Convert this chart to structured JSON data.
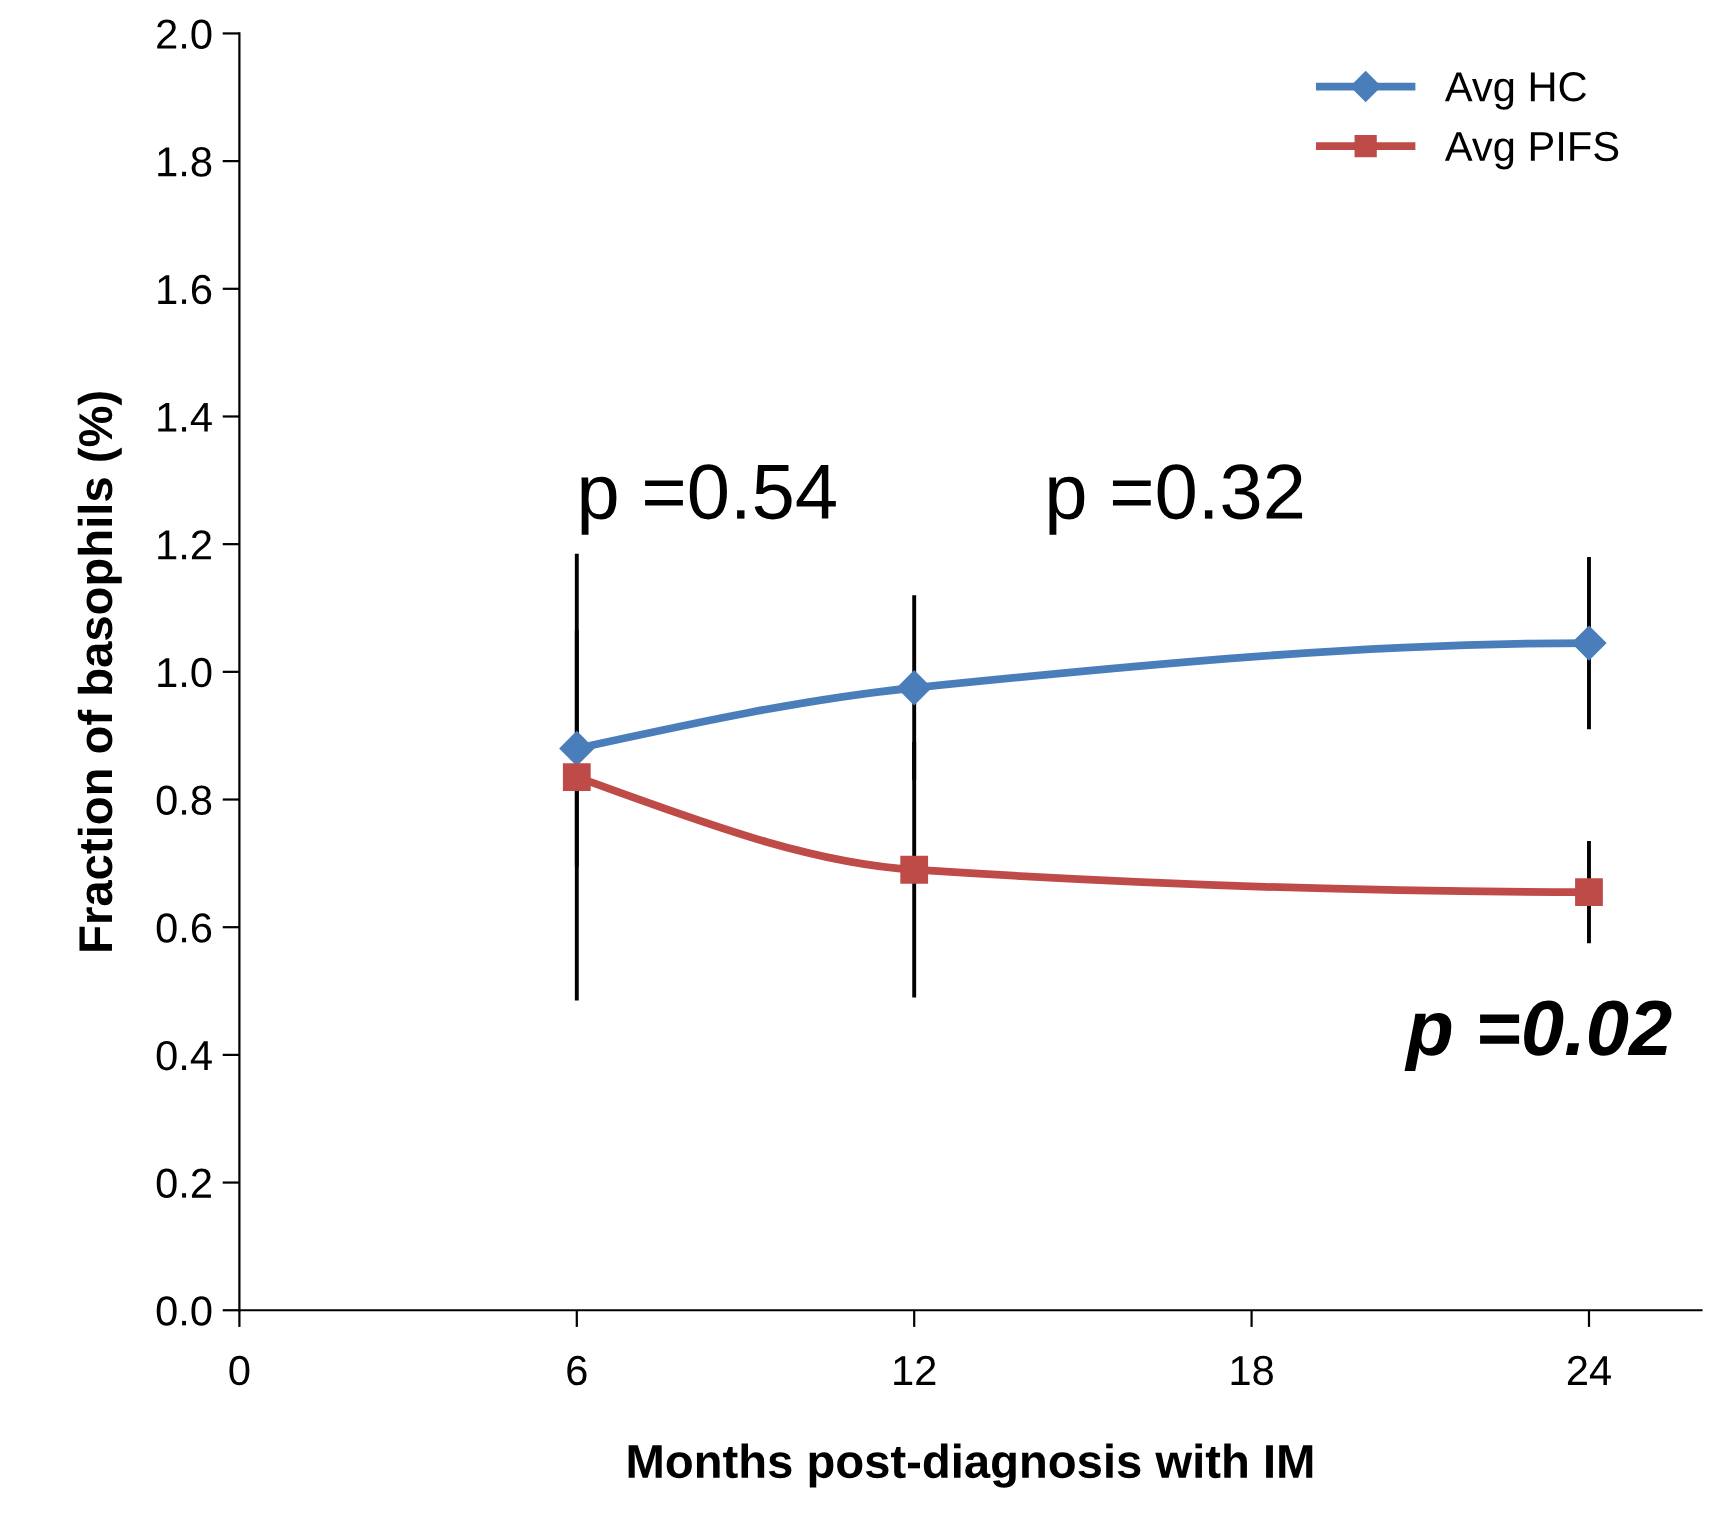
{
  "chart_data": {
    "type": "line",
    "xlabel": "Months post-diagnosis with IM",
    "ylabel": "Fraction of basophils (%)",
    "x": [
      6,
      12,
      24
    ],
    "series": [
      {
        "name": "Avg HC",
        "color": "#4a7ebb",
        "marker": "diamond",
        "values": [
          0.88,
          0.975,
          1.045
        ],
        "errors": [
          0.185,
          0.145,
          0.135
        ]
      },
      {
        "name": "Avg PIFS",
        "color": "#be4b48",
        "marker": "square",
        "values": [
          0.835,
          0.69,
          0.655
        ],
        "errors": [
          0.35,
          0.2,
          0.08
        ]
      }
    ],
    "xlim": [
      0,
      26
    ],
    "xticks": [
      0,
      6,
      12,
      18,
      24
    ],
    "ylim": [
      0,
      2.0
    ],
    "yticks": [
      {
        "value": 0,
        "label": "0.0"
      },
      {
        "value": 0.2,
        "label": "0.2"
      },
      {
        "value": 0.4,
        "label": "0.4"
      },
      {
        "value": 0.6,
        "label": "0.6"
      },
      {
        "value": 0.8,
        "label": "0.8"
      },
      {
        "value": 1.0,
        "label": "1.0"
      },
      {
        "value": 1.2,
        "label": "1.2"
      },
      {
        "value": 1.4,
        "label": "1.4"
      },
      {
        "value": 1.6,
        "label": "1.6"
      },
      {
        "value": 1.8,
        "label": "1.8"
      },
      {
        "value": 2.0,
        "label": "2.0"
      }
    ],
    "annotations": [
      "p =0.54",
      "p =0.32",
      "p =0.02"
    ],
    "grid": false,
    "legend": "top right",
    "line_style": "solid"
  }
}
